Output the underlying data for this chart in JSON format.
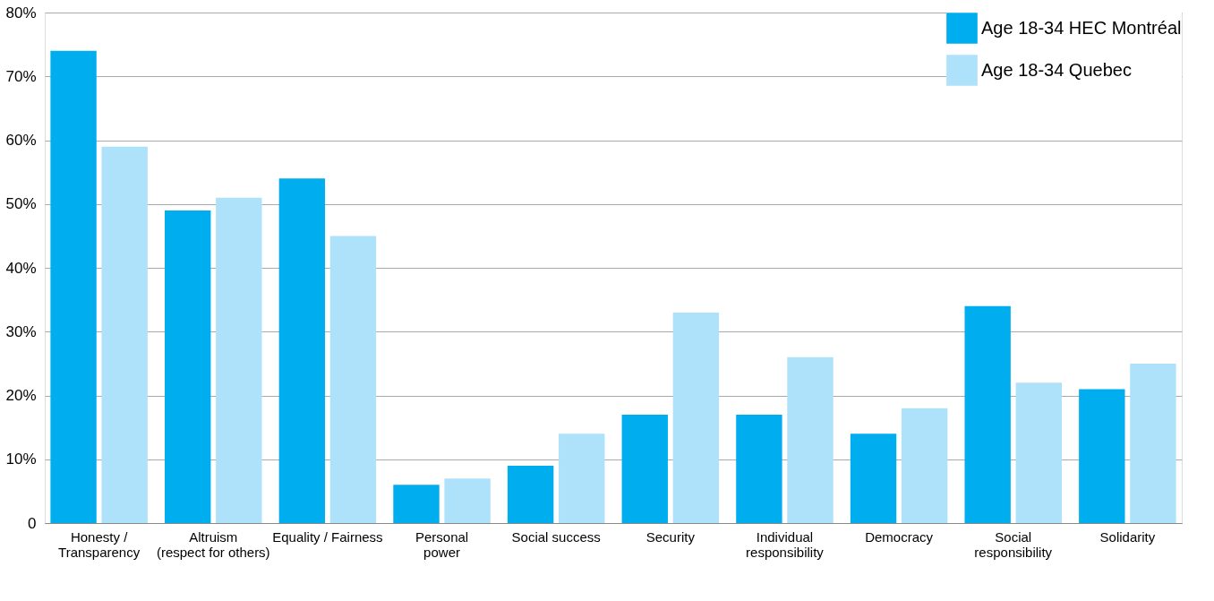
{
  "chart_data": {
    "type": "bar",
    "categories": [
      "Honesty /\nTransparency",
      "Altruism\n(respect for others)",
      "Equality / Fairness",
      "Personal\npower",
      "Social success",
      "Security",
      "Individual\nresponsibility",
      "Democracy",
      "Social\nresponsibility",
      "Solidarity"
    ],
    "series": [
      {
        "name": "Age 18-34 HEC Montréal",
        "color": "#00aeef",
        "values": [
          74,
          49,
          54,
          6,
          9,
          17,
          17,
          14,
          34,
          21
        ]
      },
      {
        "name": "Age 18-34 Quebec",
        "color": "#aee1fa",
        "values": [
          59,
          51,
          45,
          7,
          14,
          33,
          26,
          18,
          22,
          25
        ]
      }
    ],
    "ylim": [
      0,
      80
    ],
    "yticks": [
      0,
      {
        "value": 10,
        "label": "10%"
      },
      {
        "value": 20,
        "label": "20%"
      },
      {
        "value": 30,
        "label": "30%"
      },
      {
        "value": 40,
        "label": "40%"
      },
      {
        "value": 50,
        "label": "50%"
      },
      {
        "value": 60,
        "label": "60%"
      },
      {
        "value": 70,
        "label": "70%"
      },
      {
        "value": 80,
        "label": "80%"
      }
    ],
    "grid": "y",
    "legend": "top right"
  }
}
